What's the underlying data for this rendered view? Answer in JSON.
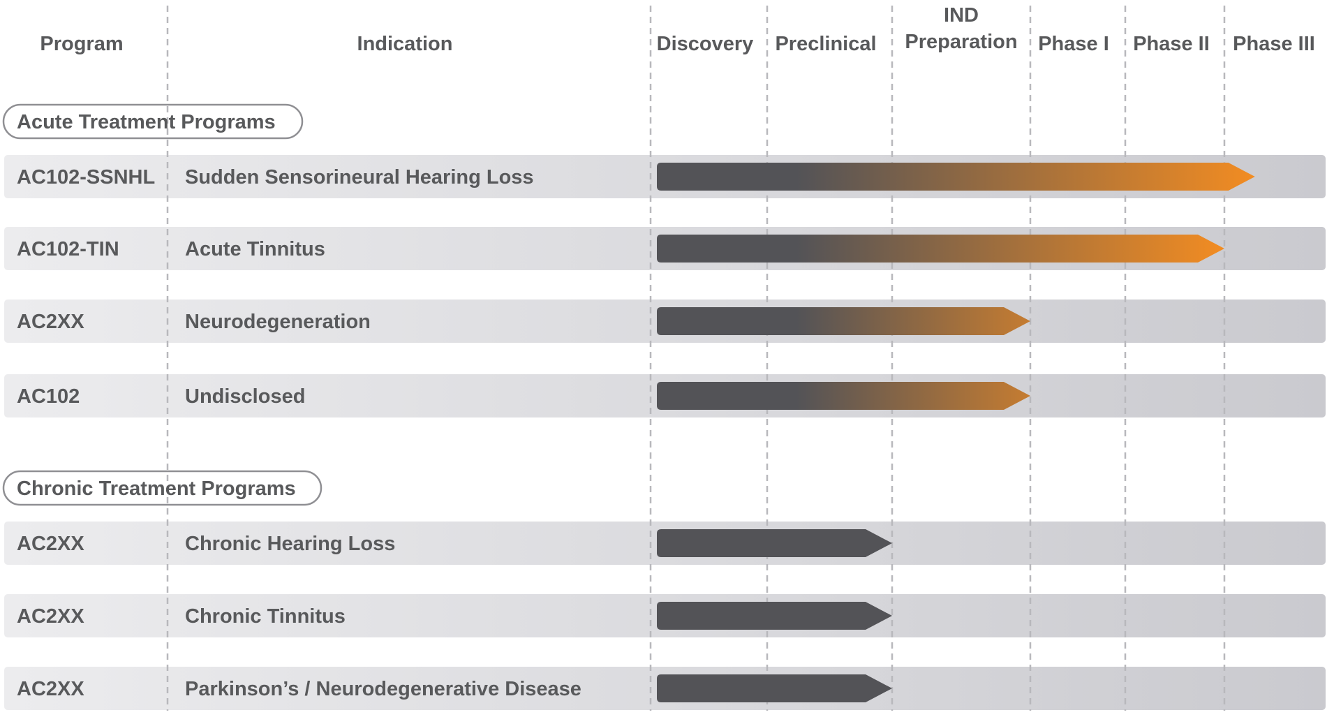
{
  "chart_data": {
    "type": "table",
    "title": "",
    "columns": {
      "program": "Program",
      "indication": "Indication",
      "stages": [
        {
          "line1": "Discovery",
          "line2": ""
        },
        {
          "line1": "Preclinical",
          "line2": ""
        },
        {
          "line1": "IND",
          "line2": "Preparation"
        },
        {
          "line1": "Phase I",
          "line2": ""
        },
        {
          "line1": "Phase II",
          "line2": ""
        },
        {
          "line1": "Phase III",
          "line2": ""
        }
      ]
    },
    "groups": [
      {
        "title": "Acute Treatment Programs",
        "rows": [
          {
            "program": "AC102-SSNHL",
            "indication": "Sudden Sensorineural Hearing Loss",
            "progress_stage": 5.3
          },
          {
            "program": "AC102-TIN",
            "indication": "Acute Tinnitus",
            "progress_stage": 5.0
          },
          {
            "program": "AC2XX",
            "indication": "Neurodegeneration",
            "progress_stage": 3.0
          },
          {
            "program": "AC102",
            "indication": "Undisclosed",
            "progress_stage": 3.0
          }
        ]
      },
      {
        "title": "Chronic Treatment Programs",
        "rows": [
          {
            "program": "AC2XX",
            "indication": "Chronic Hearing Loss",
            "progress_stage": 2.0
          },
          {
            "program": "AC2XX",
            "indication": "Chronic Tinnitus",
            "progress_stage": 2.0
          },
          {
            "program": "AC2XX",
            "indication": "Parkinson’s / Neurodegenerative Disease",
            "progress_stage": 2.0
          }
        ]
      }
    ],
    "progress_unit": "stage boundary index (0 = start of Discovery, 6 = end of Phase III)"
  },
  "colors": {
    "text": "#58595b",
    "row_bg_left": "#ececee",
    "row_bg_right": "#cacacf",
    "bar_dark": "#535357",
    "bar_accent": "#f28c22",
    "divider": "#b8b8bc",
    "pill_border": "#8f8f93"
  }
}
